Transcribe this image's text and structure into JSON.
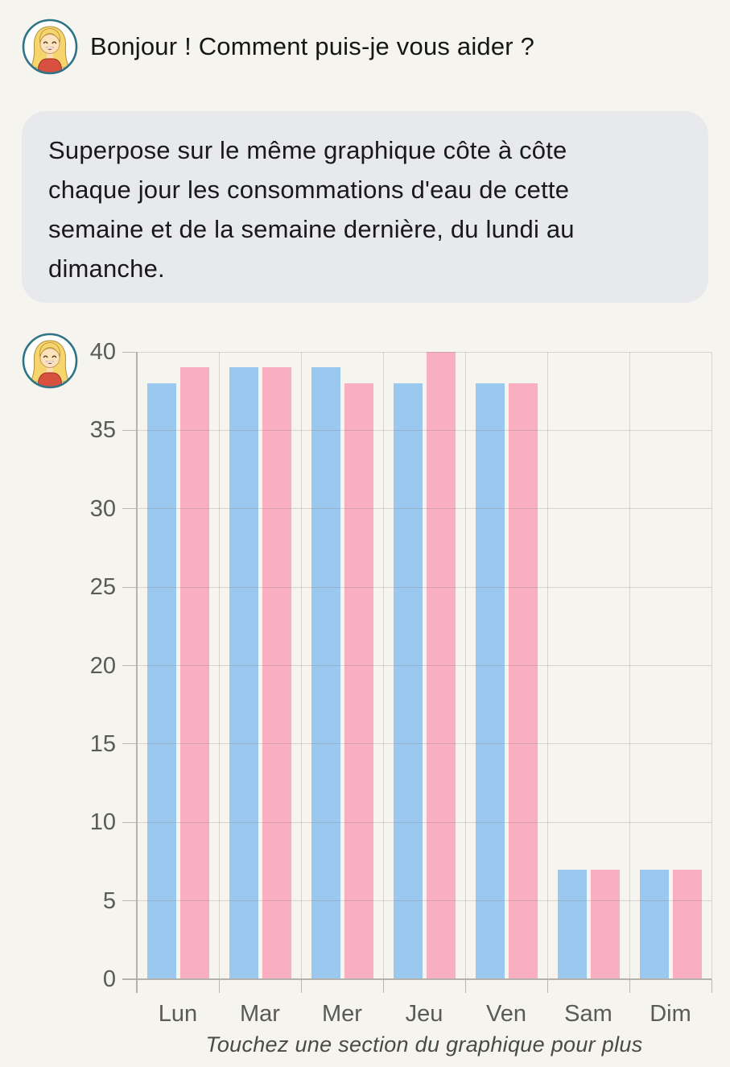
{
  "greeting": {
    "text": "Bonjour ! Comment puis-je vous aider ?"
  },
  "user_message": {
    "text": "Superpose sur le même graphique côte à côte chaque jour les consommations d'eau de cette semaine et de la semaine dernière, du lundi au dimanche.",
    "lines": [
      "Superpose sur le même graphique côte à côte",
      "chaque jour les consommations d'eau de cette",
      "semaine et de la semaine dernière, du lundi au",
      "dimanche."
    ]
  },
  "icons": {
    "assistant_avatar": "girl-avatar"
  },
  "colors": {
    "background": "#f5f4ee",
    "bubble": "#e8e9ec",
    "bar_blue": "#9bc8ee",
    "bar_pink": "#f9afbf",
    "gridline": "#d9d8d3",
    "axis": "#b2b1ac",
    "tick_label": "#5a5a58",
    "avatar_ring": "#2e7485"
  },
  "chart_data": {
    "type": "bar",
    "title": "",
    "xlabel": "",
    "ylabel": "",
    "categories": [
      "Lun",
      "Mar",
      "Mer",
      "Jeu",
      "Ven",
      "Sam",
      "Dim"
    ],
    "series": [
      {
        "name": "serie-bleue",
        "color": "#9bc8ee",
        "values": [
          38,
          39,
          39,
          38,
          38,
          7,
          7
        ]
      },
      {
        "name": "serie-rose",
        "color": "#f9afbf",
        "values": [
          39,
          39,
          38,
          40,
          38,
          7,
          7
        ]
      }
    ],
    "ylim": [
      0,
      40
    ],
    "yticks": [
      0,
      5,
      10,
      15,
      20,
      25,
      30,
      35,
      40
    ],
    "grid": true,
    "legend": "none",
    "caption": "Touchez une section du graphique pour plus"
  }
}
